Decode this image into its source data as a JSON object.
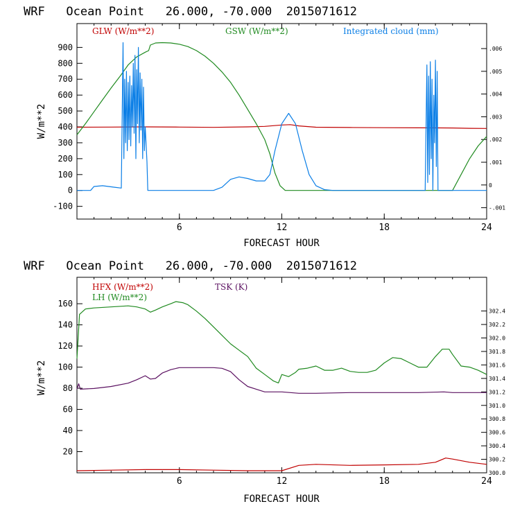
{
  "chart_data": [
    {
      "type": "line",
      "title": "WRF   Ocean Point   26.000, -70.000  2015071612",
      "xlabel": "FORECAST HOUR",
      "ylabel": "W/m**2",
      "xlim": [
        0,
        24
      ],
      "ylim": [
        -180,
        1050
      ],
      "x_ticks": [
        6,
        12,
        18,
        24
      ],
      "y_ticks": [
        -100,
        0,
        100,
        200,
        300,
        400,
        500,
        600,
        700,
        800,
        900
      ],
      "y2lim": [
        -0.0015,
        0.0071
      ],
      "y2_ticks": [
        -0.001,
        0,
        0.001,
        0.002,
        0.003,
        0.004,
        0.005,
        0.006
      ],
      "y2_tick_labels": [
        "-.001",
        "0",
        ".001",
        ".002",
        ".003",
        ".004",
        ".005",
        ".006"
      ],
      "series": [
        {
          "name": "GLW (W/m**2)",
          "color": "#c00000",
          "axis": "left",
          "points": [
            [
              0,
              398
            ],
            [
              2,
              399
            ],
            [
              4,
              400
            ],
            [
              6,
              399
            ],
            [
              8,
              397
            ],
            [
              10,
              400
            ],
            [
              11,
              403
            ],
            [
              12,
              412
            ],
            [
              12.5,
              414
            ],
            [
              13,
              406
            ],
            [
              14,
              398
            ],
            [
              16,
              396
            ],
            [
              18,
              395
            ],
            [
              20,
              394
            ],
            [
              22,
              393
            ],
            [
              23,
              391
            ],
            [
              24,
              390
            ]
          ]
        },
        {
          "name": "GSW (W/m**2)",
          "color": "#1f8a1f",
          "axis": "left",
          "points": [
            [
              0,
              350
            ],
            [
              0.5,
              420
            ],
            [
              1,
              495
            ],
            [
              1.5,
              570
            ],
            [
              2,
              645
            ],
            [
              2.5,
              715
            ],
            [
              3,
              790
            ],
            [
              3.5,
              840
            ],
            [
              4,
              870
            ],
            [
              4.2,
              880
            ],
            [
              4.3,
              915
            ],
            [
              4.6,
              928
            ],
            [
              5,
              930
            ],
            [
              5.5,
              928
            ],
            [
              6,
              920
            ],
            [
              6.5,
              905
            ],
            [
              7,
              880
            ],
            [
              7.5,
              845
            ],
            [
              8,
              800
            ],
            [
              8.5,
              745
            ],
            [
              9,
              680
            ],
            [
              9.5,
              600
            ],
            [
              10,
              510
            ],
            [
              10.5,
              420
            ],
            [
              11,
              320
            ],
            [
              11.3,
              230
            ],
            [
              11.6,
              110
            ],
            [
              11.9,
              30
            ],
            [
              12.2,
              0
            ],
            [
              22,
              0
            ],
            [
              22.5,
              100
            ],
            [
              23,
              200
            ],
            [
              23.5,
              280
            ],
            [
              24,
              340
            ]
          ]
        },
        {
          "name": "Integrated cloud (mm)",
          "color": "#0a7ee6",
          "axis": "left",
          "points": [
            [
              0,
              0
            ],
            [
              0.8,
              0
            ],
            [
              1,
              25
            ],
            [
              1.5,
              30
            ],
            [
              2.2,
              20
            ],
            [
              2.6,
              15
            ],
            [
              2.7,
              930
            ],
            [
              2.75,
              200
            ],
            [
              2.8,
              700
            ],
            [
              2.85,
              300
            ],
            [
              2.9,
              750
            ],
            [
              2.95,
              250
            ],
            [
              3.0,
              680
            ],
            [
              3.05,
              320
            ],
            [
              3.1,
              720
            ],
            [
              3.15,
              280
            ],
            [
              3.2,
              660
            ],
            [
              3.25,
              400
            ],
            [
              3.3,
              800
            ],
            [
              3.35,
              360
            ],
            [
              3.4,
              850
            ],
            [
              3.45,
              200
            ],
            [
              3.5,
              760
            ],
            [
              3.55,
              420
            ],
            [
              3.6,
              900
            ],
            [
              3.65,
              300
            ],
            [
              3.7,
              740
            ],
            [
              3.75,
              380
            ],
            [
              3.8,
              700
            ],
            [
              3.85,
              200
            ],
            [
              3.9,
              650
            ],
            [
              3.95,
              250
            ],
            [
              4.0,
              400
            ],
            [
              4.1,
              180
            ],
            [
              4.15,
              0
            ],
            [
              4.2,
              0
            ],
            [
              8,
              0
            ],
            [
              8.5,
              20
            ],
            [
              9,
              70
            ],
            [
              9.5,
              85
            ],
            [
              10,
              75
            ],
            [
              10.5,
              60
            ],
            [
              11,
              60
            ],
            [
              11.3,
              100
            ],
            [
              11.6,
              250
            ],
            [
              12,
              420
            ],
            [
              12.4,
              485
            ],
            [
              12.8,
              420
            ],
            [
              13.2,
              250
            ],
            [
              13.6,
              100
            ],
            [
              14,
              30
            ],
            [
              14.5,
              5
            ],
            [
              15,
              0
            ],
            [
              20.4,
              0
            ],
            [
              20.5,
              790
            ],
            [
              20.55,
              50
            ],
            [
              20.6,
              720
            ],
            [
              20.65,
              100
            ],
            [
              20.7,
              810
            ],
            [
              20.75,
              200
            ],
            [
              20.8,
              700
            ],
            [
              20.85,
              0
            ],
            [
              20.9,
              600
            ],
            [
              20.95,
              300
            ],
            [
              21.0,
              820
            ],
            [
              21.05,
              150
            ],
            [
              21.1,
              750
            ],
            [
              21.15,
              0
            ],
            [
              21.2,
              0
            ],
            [
              24,
              0
            ]
          ]
        }
      ]
    },
    {
      "type": "line",
      "title": "WRF   Ocean Point   26.000, -70.000  2015071612",
      "xlabel": "FORECAST HOUR",
      "ylabel": "W/m**2",
      "xlim": [
        0,
        24
      ],
      "ylim": [
        0,
        185
      ],
      "x_ticks": [
        6,
        12,
        18,
        24
      ],
      "y_ticks": [
        20,
        40,
        60,
        80,
        100,
        120,
        140,
        160
      ],
      "y2lim": [
        300.0,
        302.9
      ],
      "y2_ticks": [
        300.0,
        300.2,
        300.4,
        300.6,
        300.8,
        301.0,
        301.2,
        301.4,
        301.6,
        301.8,
        302.0,
        302.2,
        302.4
      ],
      "y2_tick_labels": [
        "300.0",
        "300.2",
        "300.4",
        "300.6",
        "300.8",
        "301.0",
        "301.2",
        "301.4",
        "301.6",
        "301.8",
        "302.0",
        "302.2",
        "302.4"
      ],
      "series": [
        {
          "name": "HFX (W/m**2)",
          "color": "#c00000",
          "axis": "left",
          "points": [
            [
              0,
              2
            ],
            [
              2,
              2.5
            ],
            [
              4,
              3
            ],
            [
              6,
              3
            ],
            [
              8,
              2.5
            ],
            [
              10,
              2
            ],
            [
              12,
              2
            ],
            [
              13,
              7
            ],
            [
              14,
              8
            ],
            [
              16,
              7
            ],
            [
              18,
              7.5
            ],
            [
              20,
              8
            ],
            [
              21,
              10
            ],
            [
              21.6,
              14
            ],
            [
              22,
              13
            ],
            [
              23,
              10
            ],
            [
              24,
              8
            ]
          ]
        },
        {
          "name": "LH  (W/m**2)",
          "color": "#1f8a1f",
          "axis": "left",
          "points": [
            [
              0,
              108
            ],
            [
              0.15,
              150
            ],
            [
              0.5,
              155
            ],
            [
              1,
              156
            ],
            [
              2,
              157
            ],
            [
              3,
              158
            ],
            [
              3.5,
              157
            ],
            [
              4,
              155
            ],
            [
              4.3,
              152
            ],
            [
              4.6,
              154
            ],
            [
              5,
              157
            ],
            [
              5.5,
              160
            ],
            [
              5.8,
              162
            ],
            [
              6.2,
              161
            ],
            [
              6.5,
              159
            ],
            [
              7,
              153
            ],
            [
              7.5,
              146
            ],
            [
              8,
              138
            ],
            [
              8.5,
              130
            ],
            [
              9,
              122
            ],
            [
              9.5,
              116
            ],
            [
              10,
              110
            ],
            [
              10.5,
              99
            ],
            [
              11,
              93
            ],
            [
              11.5,
              87
            ],
            [
              11.8,
              85
            ],
            [
              12,
              93
            ],
            [
              12.4,
              91
            ],
            [
              12.8,
              95
            ],
            [
              13,
              98
            ],
            [
              13.5,
              99
            ],
            [
              14,
              101
            ],
            [
              14.5,
              97
            ],
            [
              15,
              97
            ],
            [
              15.5,
              99
            ],
            [
              16,
              96
            ],
            [
              16.5,
              95
            ],
            [
              17,
              95
            ],
            [
              17.5,
              97
            ],
            [
              18,
              104
            ],
            [
              18.5,
              109
            ],
            [
              19,
              108
            ],
            [
              19.5,
              104
            ],
            [
              20,
              100
            ],
            [
              20.5,
              100
            ],
            [
              21,
              110
            ],
            [
              21.4,
              117
            ],
            [
              21.8,
              117
            ],
            [
              22,
              112
            ],
            [
              22.5,
              101
            ],
            [
              23,
              100
            ],
            [
              23.5,
              97
            ],
            [
              24,
              93
            ]
          ]
        },
        {
          "name": "TSK (K)",
          "color": "#5a1060",
          "axis": "right",
          "points": [
            [
              0,
              301.24
            ],
            [
              0.1,
              301.32
            ],
            [
              0.2,
              301.24
            ],
            [
              1,
              301.25
            ],
            [
              2,
              301.28
            ],
            [
              3,
              301.33
            ],
            [
              3.5,
              301.38
            ],
            [
              4,
              301.44
            ],
            [
              4.3,
              301.39
            ],
            [
              4.6,
              301.4
            ],
            [
              5,
              301.48
            ],
            [
              5.5,
              301.53
            ],
            [
              6,
              301.56
            ],
            [
              7,
              301.56
            ],
            [
              8,
              301.56
            ],
            [
              8.5,
              301.55
            ],
            [
              9,
              301.5
            ],
            [
              9.5,
              301.38
            ],
            [
              10,
              301.28
            ],
            [
              10.5,
              301.24
            ],
            [
              11,
              301.2
            ],
            [
              12,
              301.2
            ],
            [
              12.5,
              301.19
            ],
            [
              13,
              301.18
            ],
            [
              14,
              301.18
            ],
            [
              16,
              301.19
            ],
            [
              18,
              301.19
            ],
            [
              20,
              301.19
            ],
            [
              21.5,
              301.2
            ],
            [
              22,
              301.19
            ],
            [
              24,
              301.19
            ]
          ]
        }
      ]
    }
  ]
}
